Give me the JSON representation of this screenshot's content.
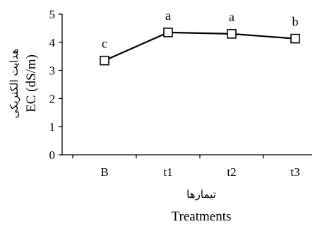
{
  "chart_data": {
    "type": "line",
    "categories": [
      "B",
      "t1",
      "t2",
      "t3"
    ],
    "series": [
      {
        "values": [
          3.35,
          4.35,
          4.3,
          4.13
        ]
      }
    ],
    "significance_letters": [
      "c",
      "a",
      "a",
      "b"
    ],
    "ylim": [
      0,
      5
    ],
    "yticks": [
      "0",
      "1",
      "2",
      "3",
      "4",
      "5"
    ],
    "ylabel": "EC (dS/m)",
    "ylabel_fa": "هدایت الکتریکی",
    "xlabel": "Treatments",
    "xlabel_fa": "تیمارها",
    "grid": false,
    "marker": "open-square"
  }
}
